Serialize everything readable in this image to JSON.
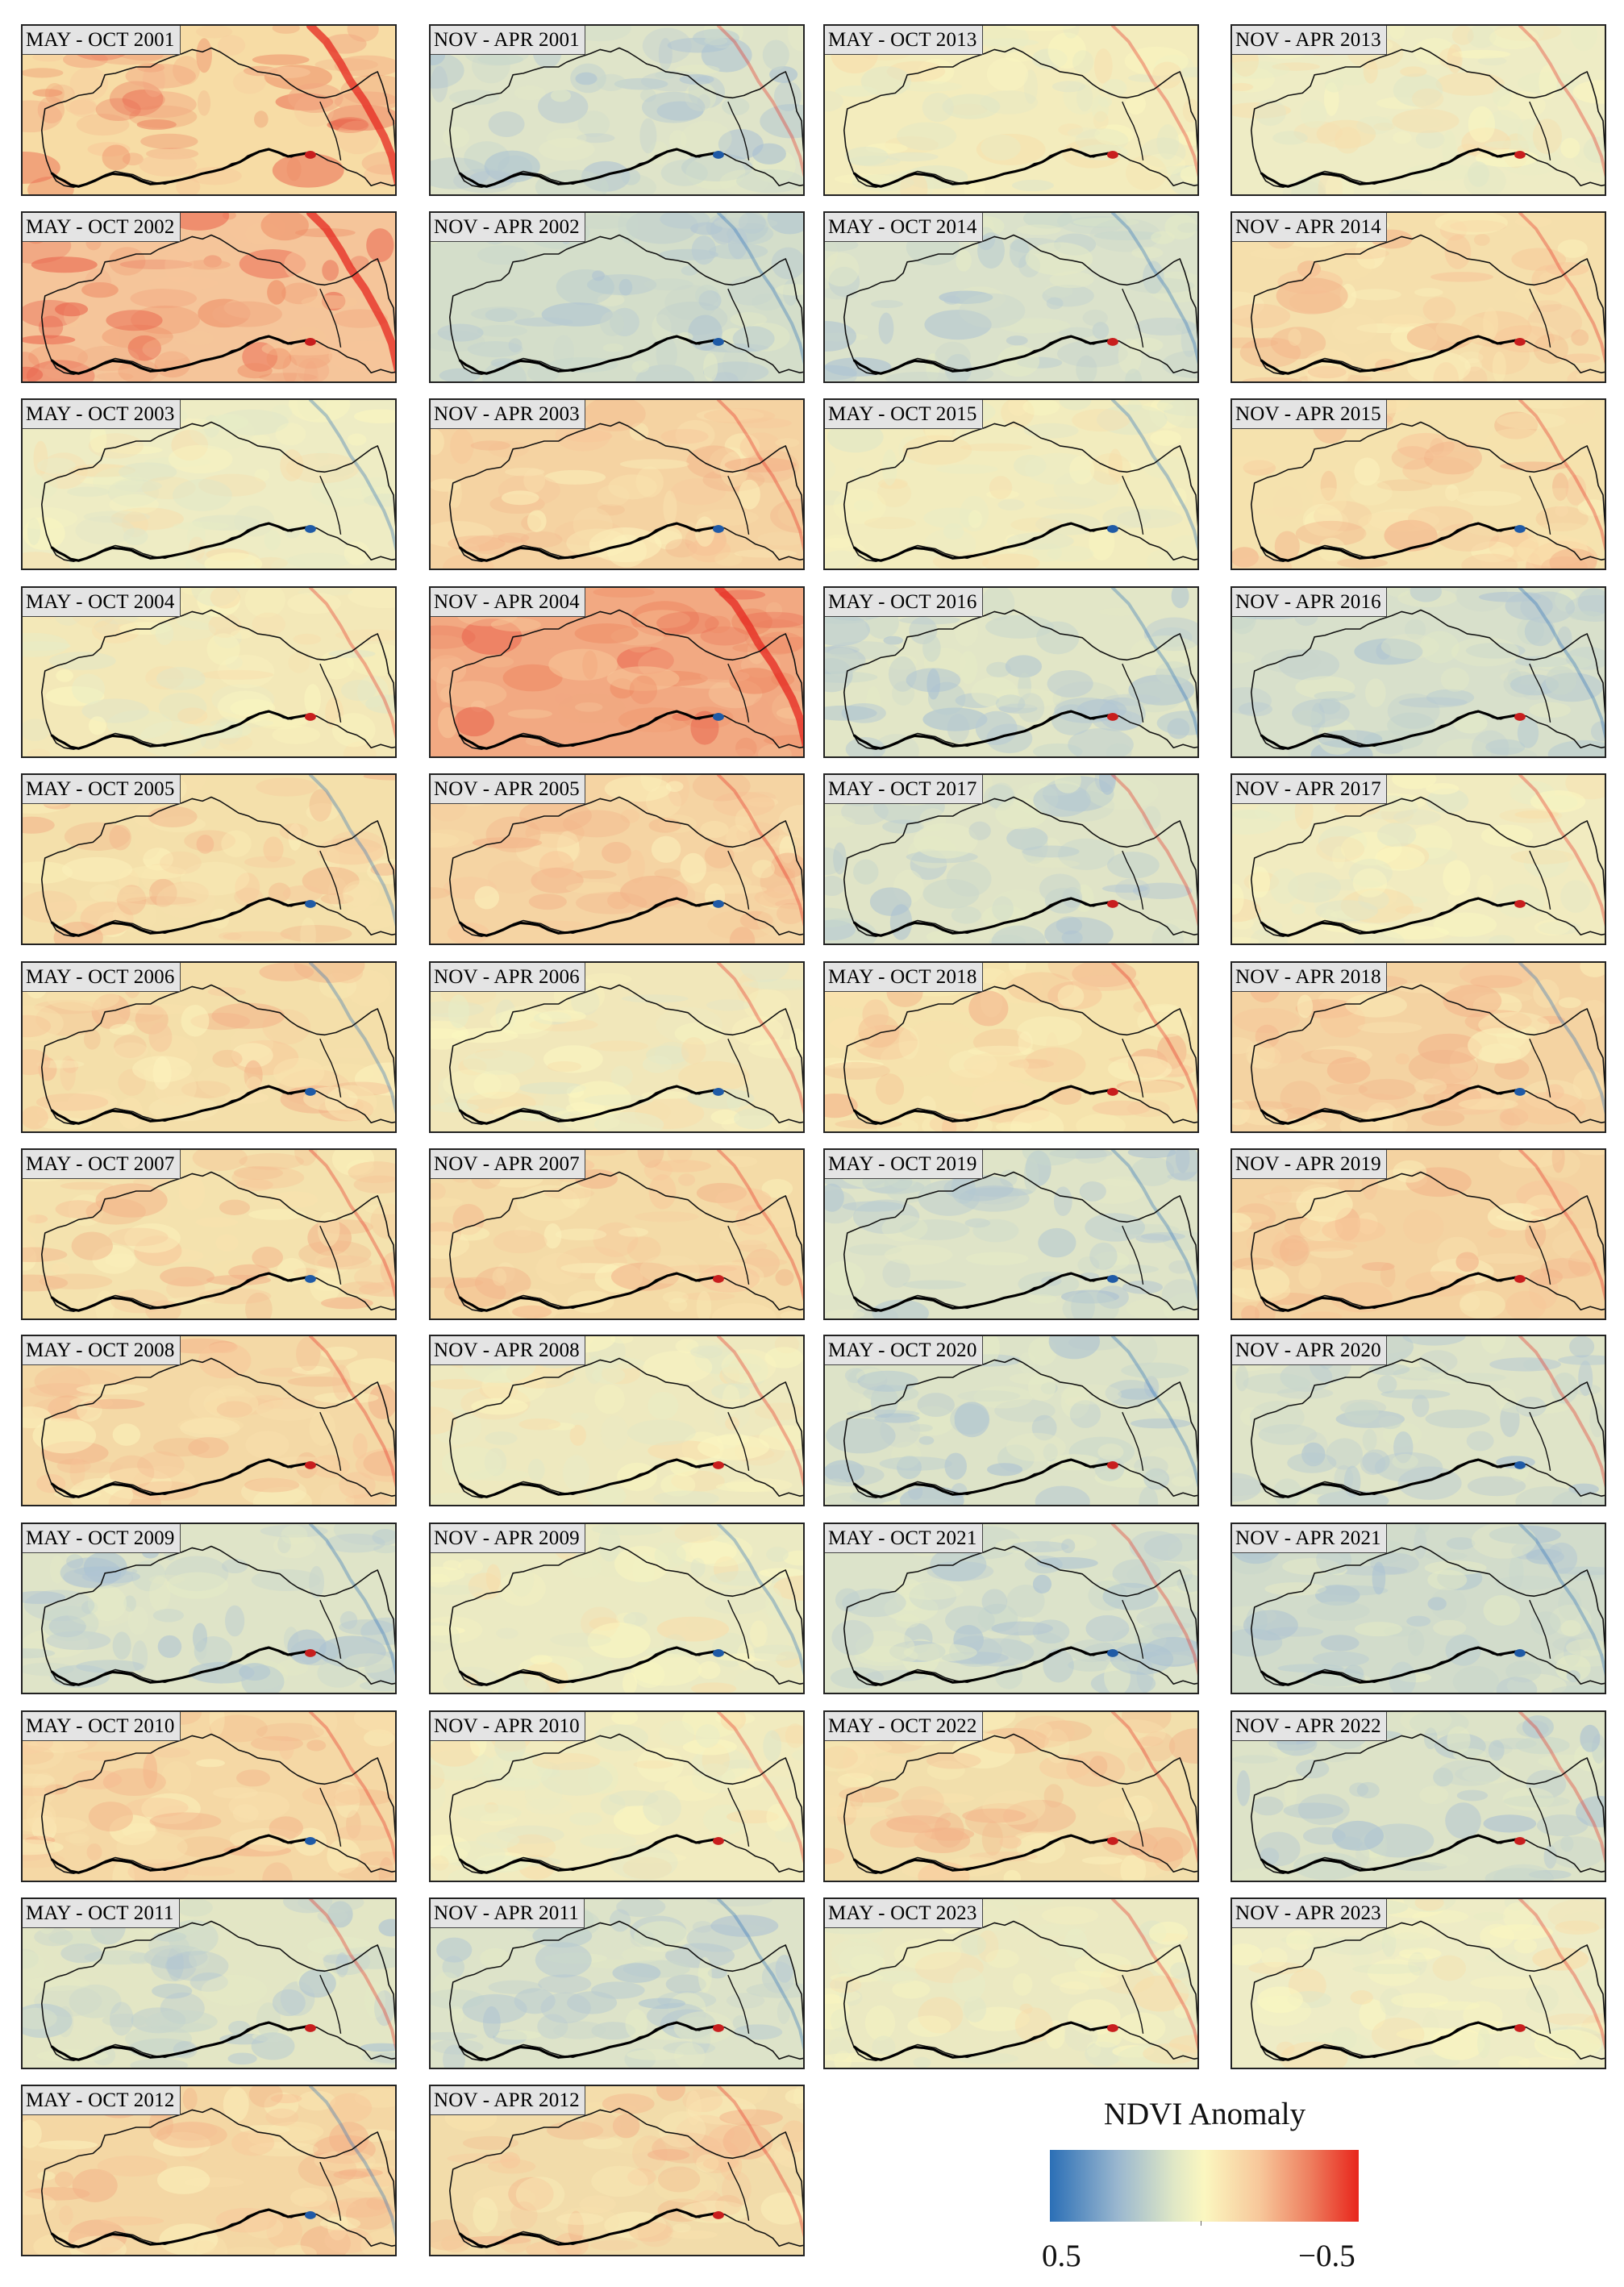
{
  "panels": [
    {
      "label": "MAY - OCT 2001",
      "tone": "warm-strong",
      "tint": "#f7dca5",
      "accent": "#e6271f",
      "water": "red"
    },
    {
      "label": "NOV - APR 2001",
      "tone": "cool",
      "tint": "#dfe4c9",
      "accent": "#e6271f",
      "water": "blue"
    },
    {
      "label": "MAY - OCT 2013",
      "tone": "neutral",
      "tint": "#f3ecbd",
      "accent": "#e6271f",
      "water": "red"
    },
    {
      "label": "NOV - APR 2013",
      "tone": "neutral",
      "tint": "#eeecc5",
      "accent": "#e6271f",
      "water": "red"
    },
    {
      "label": "MAY - OCT 2002",
      "tone": "warm-strong",
      "tint": "#f5c59a",
      "accent": "#e6271f",
      "water": "red"
    },
    {
      "label": "NOV - APR 2002",
      "tone": "cool",
      "tint": "#d4deca",
      "accent": "#2b6fb6",
      "water": "blue"
    },
    {
      "label": "MAY - OCT 2014",
      "tone": "cool",
      "tint": "#dbe2cb",
      "accent": "#2b6fb6",
      "water": "red"
    },
    {
      "label": "NOV - APR 2014",
      "tone": "warm",
      "tint": "#f5dfac",
      "accent": "#e6271f",
      "water": "red"
    },
    {
      "label": "MAY - OCT 2003",
      "tone": "neutral",
      "tint": "#eeecc4",
      "accent": "#2b6fb6",
      "water": "blue"
    },
    {
      "label": "NOV - APR 2003",
      "tone": "warm",
      "tint": "#f5d3a2",
      "accent": "#e6271f",
      "water": "blue"
    },
    {
      "label": "MAY - OCT 2015",
      "tone": "neutral",
      "tint": "#f2ecbe",
      "accent": "#2b6fb6",
      "water": "blue"
    },
    {
      "label": "NOV - APR 2015",
      "tone": "warm",
      "tint": "#f5e2ae",
      "accent": "#e6271f",
      "water": "blue"
    },
    {
      "label": "MAY - OCT 2004",
      "tone": "neutral",
      "tint": "#f3e8b8",
      "accent": "#e6271f",
      "water": "red"
    },
    {
      "label": "NOV - APR 2004",
      "tone": "warm-strong",
      "tint": "#f2a982",
      "accent": "#e6271f",
      "water": "blue"
    },
    {
      "label": "MAY - OCT 2016",
      "tone": "cool",
      "tint": "#e2e6c7",
      "accent": "#2b6fb6",
      "water": "red"
    },
    {
      "label": "NOV - APR 2016",
      "tone": "cool",
      "tint": "#d8e0cb",
      "accent": "#2b6fb6",
      "water": "red"
    },
    {
      "label": "MAY - OCT 2005",
      "tone": "warm",
      "tint": "#f4e0ab",
      "accent": "#2b6fb6",
      "water": "blue"
    },
    {
      "label": "NOV - APR 2005",
      "tone": "warm",
      "tint": "#f5d4a3",
      "accent": "#e6271f",
      "water": "blue"
    },
    {
      "label": "MAY - OCT 2017",
      "tone": "cool",
      "tint": "#e0e4c7",
      "accent": "#e6271f",
      "water": "red"
    },
    {
      "label": "NOV - APR 2017",
      "tone": "neutral",
      "tint": "#f1ebc0",
      "accent": "#e6271f",
      "water": "red"
    },
    {
      "label": "MAY - OCT 2006",
      "tone": "warm",
      "tint": "#f4dfaa",
      "accent": "#2b6fb6",
      "water": "blue"
    },
    {
      "label": "NOV - APR 2006",
      "tone": "neutral",
      "tint": "#f1e7ba",
      "accent": "#e6271f",
      "water": "blue"
    },
    {
      "label": "MAY - OCT 2018",
      "tone": "warm",
      "tint": "#f5e3ad",
      "accent": "#e6271f",
      "water": "red"
    },
    {
      "label": "NOV - APR 2018",
      "tone": "warm",
      "tint": "#f4d3a2",
      "accent": "#2b6fb6",
      "water": "blue"
    },
    {
      "label": "MAY - OCT 2007",
      "tone": "warm",
      "tint": "#f4e2ae",
      "accent": "#e6271f",
      "water": "blue"
    },
    {
      "label": "NOV - APR 2007",
      "tone": "warm",
      "tint": "#f4dba7",
      "accent": "#e6271f",
      "water": "red"
    },
    {
      "label": "MAY - OCT 2019",
      "tone": "cool",
      "tint": "#dfe4c8",
      "accent": "#2b6fb6",
      "water": "blue"
    },
    {
      "label": "NOV - APR 2019",
      "tone": "warm",
      "tint": "#f4d3a1",
      "accent": "#e6271f",
      "water": "red"
    },
    {
      "label": "MAY - OCT 2008",
      "tone": "warm",
      "tint": "#f4d9a6",
      "accent": "#e6271f",
      "water": "red"
    },
    {
      "label": "NOV - APR 2008",
      "tone": "neutral",
      "tint": "#eee9bf",
      "accent": "#e6271f",
      "water": "red"
    },
    {
      "label": "MAY - OCT 2020",
      "tone": "cool",
      "tint": "#dde3c8",
      "accent": "#2b6fb6",
      "water": "red"
    },
    {
      "label": "NOV - APR 2020",
      "tone": "cool",
      "tint": "#dfe4c8",
      "accent": "#e6271f",
      "water": "blue"
    },
    {
      "label": "MAY - OCT 2009",
      "tone": "cool",
      "tint": "#dfe4c8",
      "accent": "#2b6fb6",
      "water": "red"
    },
    {
      "label": "NOV - APR 2009",
      "tone": "neutral",
      "tint": "#ebeac3",
      "accent": "#2b6fb6",
      "water": "blue"
    },
    {
      "label": "MAY - OCT 2021",
      "tone": "cool",
      "tint": "#dce3ca",
      "accent": "#e6271f",
      "water": "blue"
    },
    {
      "label": "NOV - APR 2021",
      "tone": "cool",
      "tint": "#d2dccb",
      "accent": "#2b6fb6",
      "water": "blue"
    },
    {
      "label": "MAY - OCT 2010",
      "tone": "warm",
      "tint": "#f5d8a5",
      "accent": "#e6271f",
      "water": "blue"
    },
    {
      "label": "NOV - APR 2010",
      "tone": "neutral",
      "tint": "#f1ebbf",
      "accent": "#e6271f",
      "water": "red"
    },
    {
      "label": "MAY - OCT 2022",
      "tone": "warm",
      "tint": "#f2dfac",
      "accent": "#e6271f",
      "water": "red"
    },
    {
      "label": "NOV - APR 2022",
      "tone": "cool",
      "tint": "#dde3c8",
      "accent": "#e6271f",
      "water": "red"
    },
    {
      "label": "MAY - OCT 2011",
      "tone": "cool",
      "tint": "#e3e6c5",
      "accent": "#e6271f",
      "water": "red"
    },
    {
      "label": "NOV - APR 2011",
      "tone": "cool",
      "tint": "#dde3c9",
      "accent": "#2b6fb6",
      "water": "red"
    },
    {
      "label": "MAY - OCT 2023",
      "tone": "neutral",
      "tint": "#ebe9c2",
      "accent": "#e6271f",
      "water": "red"
    },
    {
      "label": "NOV - APR 2023",
      "tone": "neutral",
      "tint": "#eeecc6",
      "accent": "#e6271f",
      "water": "red"
    },
    {
      "label": "MAY - OCT 2012",
      "tone": "warm",
      "tint": "#f4d7a4",
      "accent": "#2b6fb6",
      "water": "blue"
    },
    {
      "label": "NOV - APR 2012",
      "tone": "warm",
      "tint": "#f2dcaa",
      "accent": "#e6271f",
      "water": "red"
    }
  ],
  "legend": {
    "title": "NDVI Anomaly",
    "min_label": "0.5",
    "max_label": "−0.5",
    "color_low": "#2b6fb6",
    "color_mid": "#fbf7c0",
    "color_high": "#e8251b"
  }
}
